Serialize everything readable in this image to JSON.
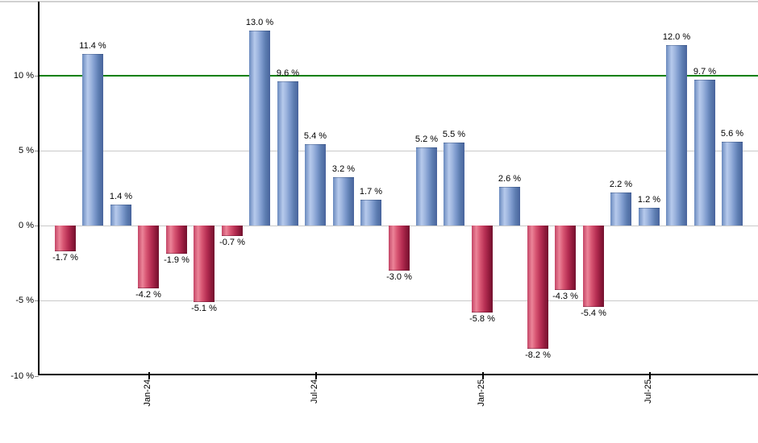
{
  "chart_data": {
    "type": "bar",
    "unit": "%",
    "ylim": [
      -10,
      15
    ],
    "grid": true,
    "values": [
      -1.7,
      11.4,
      1.4,
      -4.2,
      -1.9,
      -5.1,
      -0.7,
      13.0,
      9.6,
      5.4,
      3.2,
      1.7,
      -3.0,
      5.2,
      5.5,
      -5.8,
      2.6,
      -8.2,
      -4.3,
      -5.4,
      2.2,
      1.2,
      12.0,
      9.7,
      5.6
    ],
    "bar_labels": [
      "-1.7 %",
      "11.4 %",
      "1.4 %",
      "-4.2 %",
      "-1.9 %",
      "-5.1 %",
      "-0.7 %",
      "13.0 %",
      "9.6 %",
      "5.4 %",
      "3.2 %",
      "1.7 %",
      "-3.0 %",
      "5.2 %",
      "5.5 %",
      "-5.8 %",
      "2.6 %",
      "-8.2 %",
      "-4.3 %",
      "-5.4 %",
      "2.2 %",
      "1.2 %",
      "12.0 %",
      "9.7 %",
      "5.6 %"
    ],
    "x_ticks": [
      {
        "label": "Jan-24",
        "bar_index": 3
      },
      {
        "label": "Jul-24",
        "bar_index": 9
      },
      {
        "label": "Jan-25",
        "bar_index": 15
      },
      {
        "label": "Jul-25",
        "bar_index": 21
      }
    ],
    "y_ticks": [
      {
        "label": "10 %",
        "value": 10
      },
      {
        "label": "5 %",
        "value": 5
      },
      {
        "label": "0 %",
        "value": 0
      },
      {
        "label": "-5 %",
        "value": -5
      },
      {
        "label": "-10 %",
        "value": -10
      }
    ],
    "reference_line": {
      "value": 10,
      "color": "#008000"
    },
    "colors": {
      "positive_bar": "#7d9bce",
      "negative_bar": "#c23357",
      "gridline": "#c9c9c9",
      "axis": "#000000",
      "label_text": "#000000",
      "background": "#ffffff"
    },
    "legend_position": "none"
  }
}
